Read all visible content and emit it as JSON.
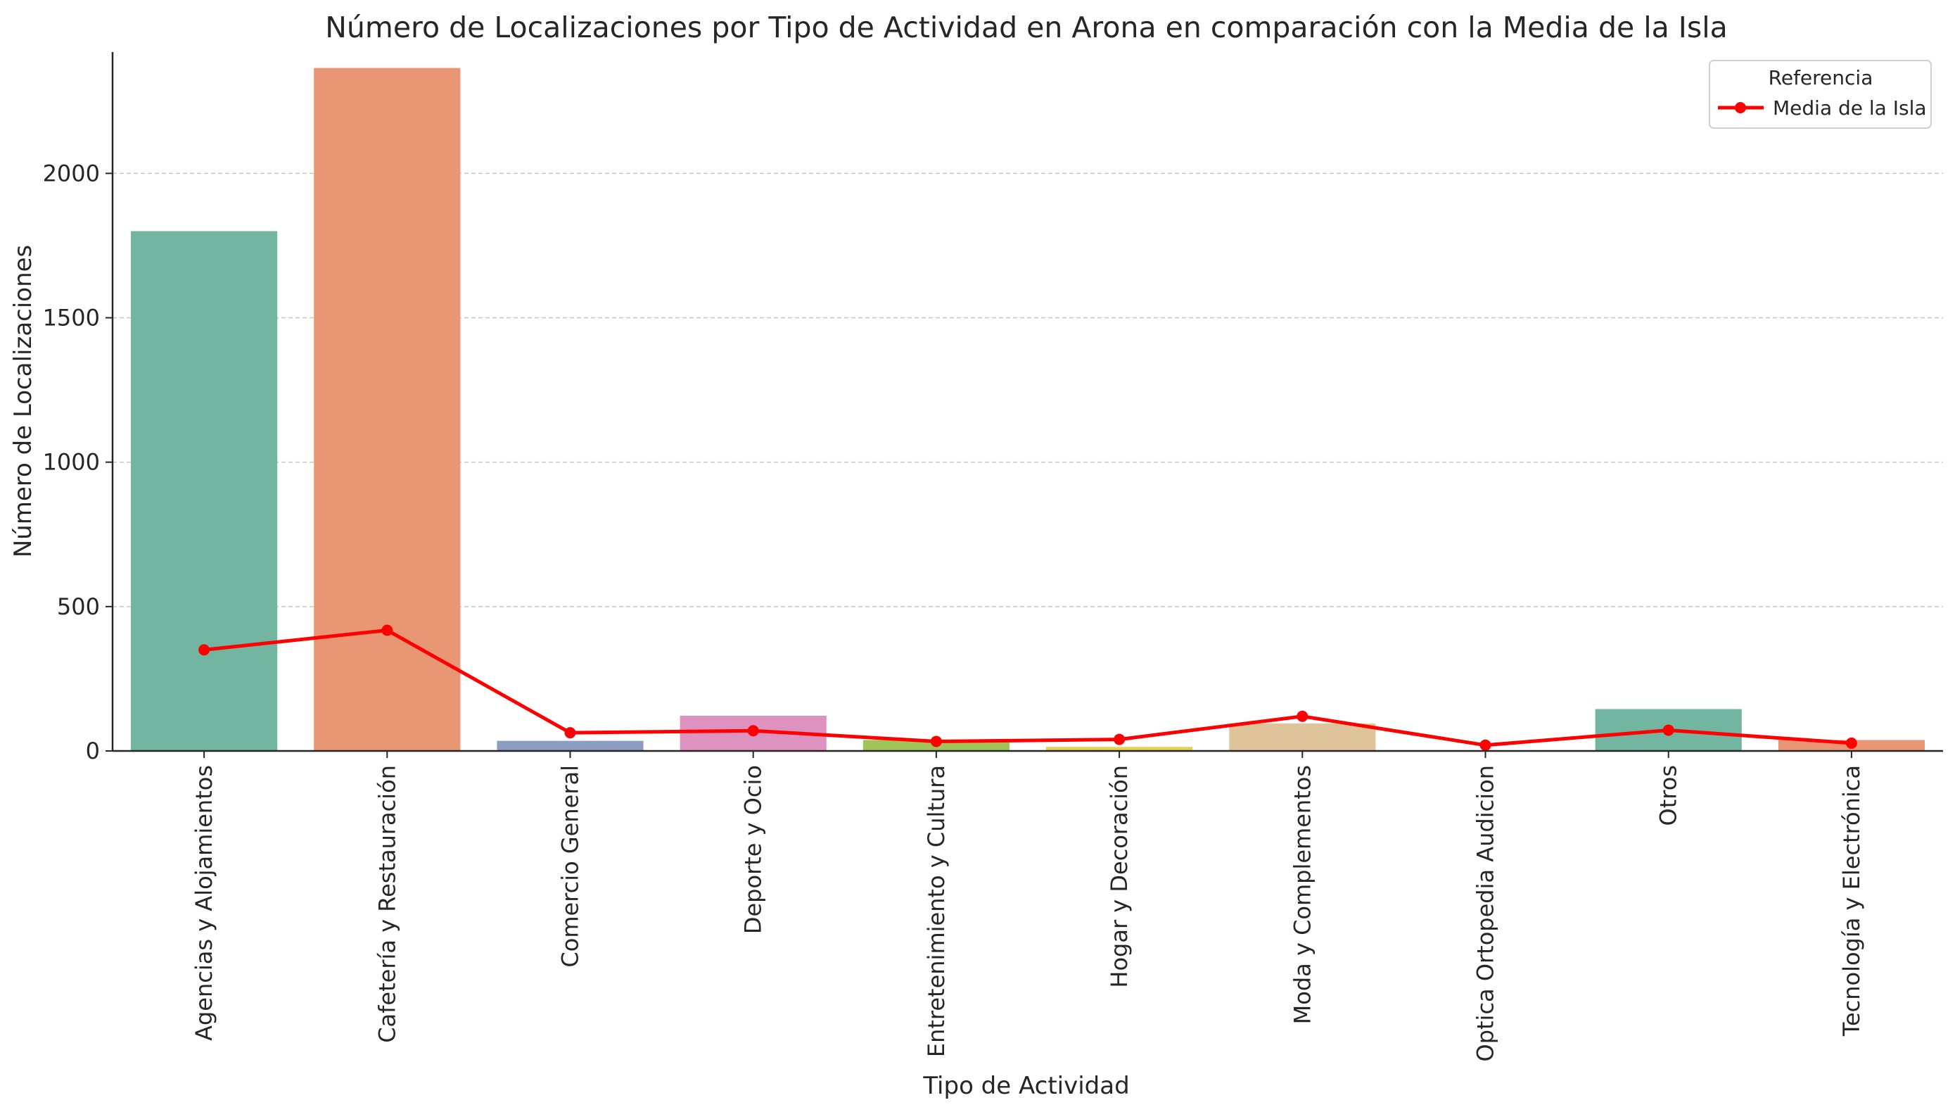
{
  "chart_data": {
    "type": "bar",
    "title": "Número de Localizaciones por Tipo de Actividad en Arona en comparación con la Media de la Isla",
    "xlabel": "Tipo de Actividad",
    "ylabel": "Número de Localizaciones",
    "ylim": [
      0,
      2420
    ],
    "yticks": [
      0,
      500,
      1000,
      1500,
      2000
    ],
    "grid": "horizontal",
    "legend_position": "top-right",
    "categories": [
      "Agencias y Alojamientos",
      "Cafetería y Restauración",
      "Comercio General",
      "Deporte y Ocio",
      "Entretenimiento y Cultura",
      "Hogar y Decoración",
      "Moda y Complementos",
      "Optica Ortopedia Audicion",
      "Otros",
      "Tecnología y Electrónica"
    ],
    "bar_values": [
      1800,
      2365,
      35,
      122,
      38,
      14,
      95,
      2,
      145,
      38
    ],
    "bar_colors": [
      "#72b5a0",
      "#e99674",
      "#8d9cc2",
      "#dd92c0",
      "#9fc55a",
      "#e6d24e",
      "#dfc49b",
      "#b4b4b4",
      "#72b5a0",
      "#e99674"
    ],
    "series": [
      {
        "name": "Media de la Isla",
        "type": "line",
        "color": "#ff0000",
        "values": [
          350,
          418,
          63,
          70,
          33,
          40,
          120,
          20,
          72,
          27
        ]
      }
    ],
    "legend": {
      "title": "Referencia"
    }
  }
}
